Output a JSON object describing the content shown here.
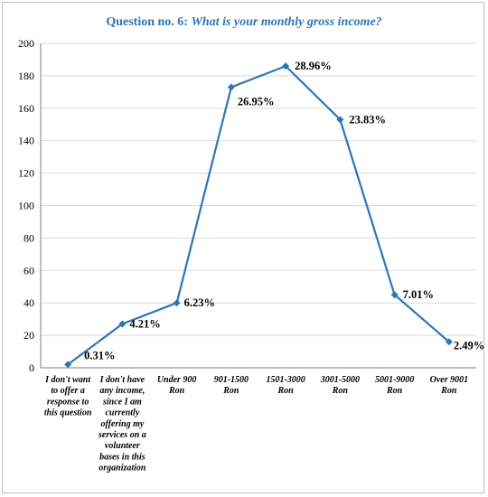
{
  "chart_data": {
    "type": "line",
    "title_prefix": "Question no. 6: ",
    "title_question": "What is your monthly gross income?",
    "categories": [
      [
        "I don't want",
        "to offer a",
        "response to",
        "this question"
      ],
      [
        "I don't have",
        "any income,",
        "since I am",
        "currently",
        "offering my",
        "services on a",
        "volunteer",
        "bases in this",
        "organization"
      ],
      [
        "Under 900",
        "Ron"
      ],
      [
        "901-1500",
        "Ron"
      ],
      [
        "1501-3000",
        "Ron"
      ],
      [
        "3001-5000",
        "Ron"
      ],
      [
        "5001-9000",
        "Ron"
      ],
      [
        "Over 9001",
        "Ron"
      ]
    ],
    "series": [
      {
        "values": [
          2,
          27,
          40,
          173,
          186,
          153,
          45,
          16
        ],
        "labels": [
          "0.31%",
          "4.21%",
          "6.23%",
          "26.95%",
          "28.96%",
          "23.83%",
          "7.01%",
          "2.49%"
        ],
        "color": "#2e75b6"
      }
    ],
    "yticks": [
      "0",
      "20",
      "40",
      "60",
      "80",
      "100",
      "120",
      "140",
      "160",
      "180",
      "200"
    ],
    "ylim": [
      0,
      200
    ],
    "grid": true,
    "legend": "none"
  }
}
